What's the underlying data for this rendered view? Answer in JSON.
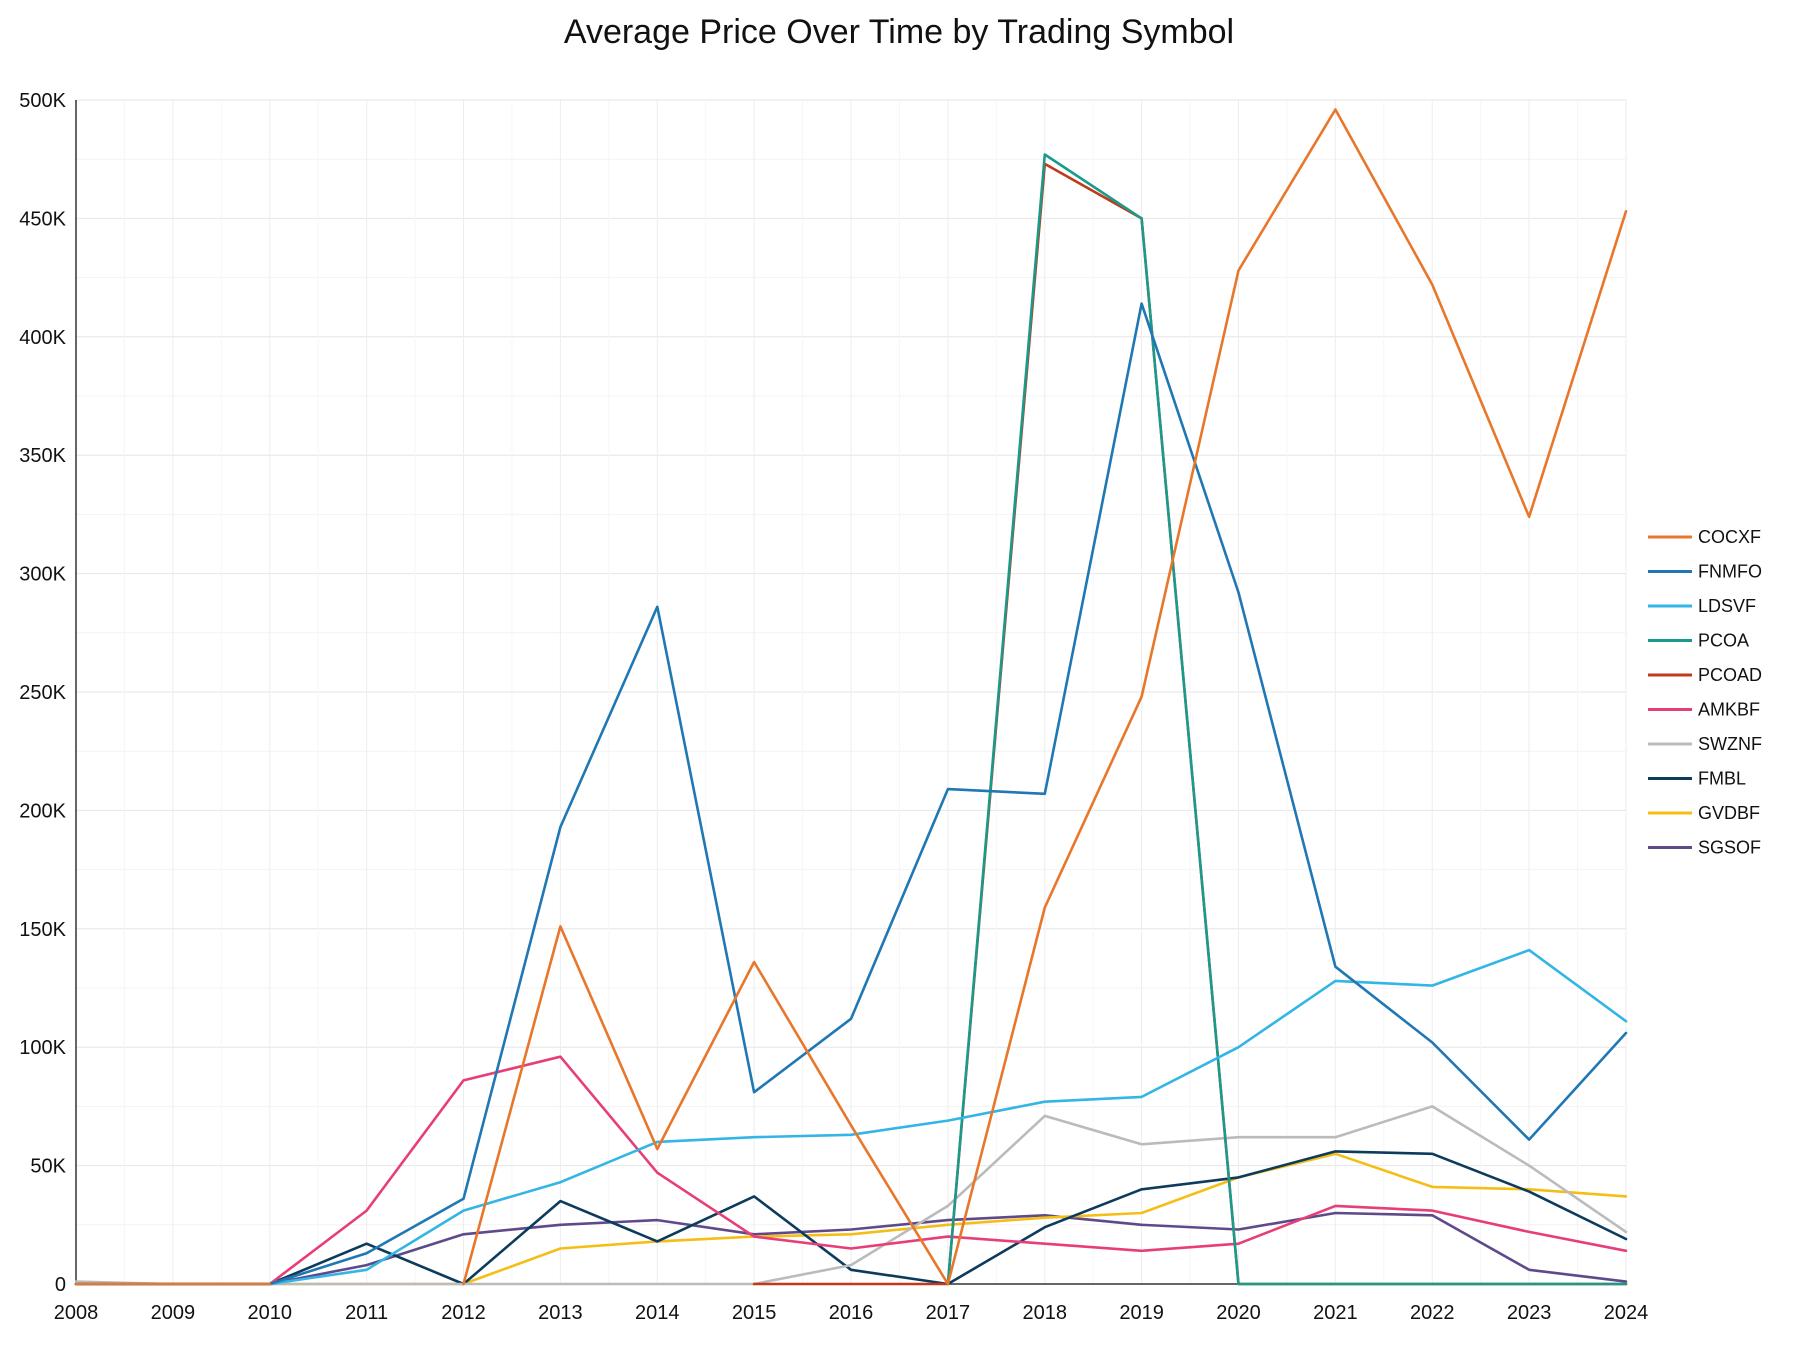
{
  "chart_data": {
    "type": "line",
    "title": "Average Price Over Time by Trading Symbol",
    "xlabel": "",
    "ylabel": "",
    "x": [
      2008,
      2009,
      2010,
      2011,
      2012,
      2013,
      2014,
      2015,
      2016,
      2017,
      2018,
      2019,
      2020,
      2021,
      2022,
      2023,
      2024
    ],
    "x_tick_labels": [
      "2008",
      "2009",
      "2010",
      "2011",
      "2012",
      "2013",
      "2014",
      "2015",
      "2016",
      "2017",
      "2018",
      "2019",
      "2020",
      "2021",
      "2022",
      "2023",
      "2024"
    ],
    "xlim": [
      2008,
      2024
    ],
    "ylim": [
      0,
      500000
    ],
    "y_ticks": [
      0,
      50000,
      100000,
      150000,
      200000,
      250000,
      300000,
      350000,
      400000,
      450000,
      500000
    ],
    "y_tick_labels": [
      "0",
      "50K",
      "100K",
      "150K",
      "200K",
      "250K",
      "300K",
      "350K",
      "400K",
      "450K",
      "500K"
    ],
    "grid": true,
    "legend_position": "right",
    "series": [
      {
        "name": "COCXF",
        "color": "#e8762b",
        "values": [
          0,
          0,
          0,
          null,
          0,
          151000,
          57000,
          136000,
          67000,
          0,
          159000,
          248000,
          428000,
          496000,
          422000,
          324000,
          453000
        ]
      },
      {
        "name": "FNMFO",
        "color": "#1f77b4",
        "values": [
          0,
          0,
          0,
          13000,
          36000,
          193000,
          286000,
          81000,
          112000,
          209000,
          207000,
          414000,
          292000,
          134000,
          102000,
          61000,
          106000
        ]
      },
      {
        "name": "LDSVF",
        "color": "#33b5e5",
        "values": [
          0,
          0,
          0,
          6000,
          31000,
          43000,
          60000,
          62000,
          63000,
          69000,
          77000,
          79000,
          100000,
          128000,
          126000,
          141000,
          111000
        ]
      },
      {
        "name": "PCOA",
        "color": "#1a9a8a",
        "values": [
          null,
          null,
          null,
          null,
          null,
          null,
          null,
          null,
          null,
          0,
          477000,
          450000,
          0,
          0,
          0,
          0,
          0
        ]
      },
      {
        "name": "PCOAD",
        "color": "#c0391b",
        "values": [
          null,
          null,
          null,
          null,
          null,
          null,
          null,
          0,
          0,
          0,
          473000,
          450000,
          0,
          0,
          0,
          0,
          0
        ]
      },
      {
        "name": "AMKBF",
        "color": "#e83e77",
        "values": [
          0,
          0,
          0,
          31000,
          86000,
          96000,
          47000,
          20000,
          15000,
          20000,
          17000,
          14000,
          17000,
          33000,
          31000,
          22000,
          14000
        ]
      },
      {
        "name": "SWZNF",
        "color": "#bbbbbb",
        "values": [
          1000,
          0,
          0,
          0,
          0,
          0,
          0,
          0,
          8000,
          33000,
          71000,
          59000,
          62000,
          62000,
          75000,
          50000,
          22000
        ]
      },
      {
        "name": "FMBL",
        "color": "#0d3b5c",
        "values": [
          0,
          0,
          0,
          17000,
          0,
          35000,
          18000,
          37000,
          6000,
          0,
          24000,
          40000,
          45000,
          56000,
          55000,
          39000,
          19000
        ]
      },
      {
        "name": "GVDBF",
        "color": "#f5be16",
        "values": [
          0,
          0,
          0,
          0,
          0,
          15000,
          18000,
          20000,
          21000,
          25000,
          28000,
          30000,
          45000,
          55000,
          41000,
          40000,
          37000
        ]
      },
      {
        "name": "SGSOF",
        "color": "#5e4a8b",
        "values": [
          0,
          0,
          0,
          8000,
          21000,
          25000,
          27000,
          21000,
          23000,
          27000,
          29000,
          25000,
          23000,
          30000,
          29000,
          6000,
          1000
        ]
      }
    ]
  }
}
